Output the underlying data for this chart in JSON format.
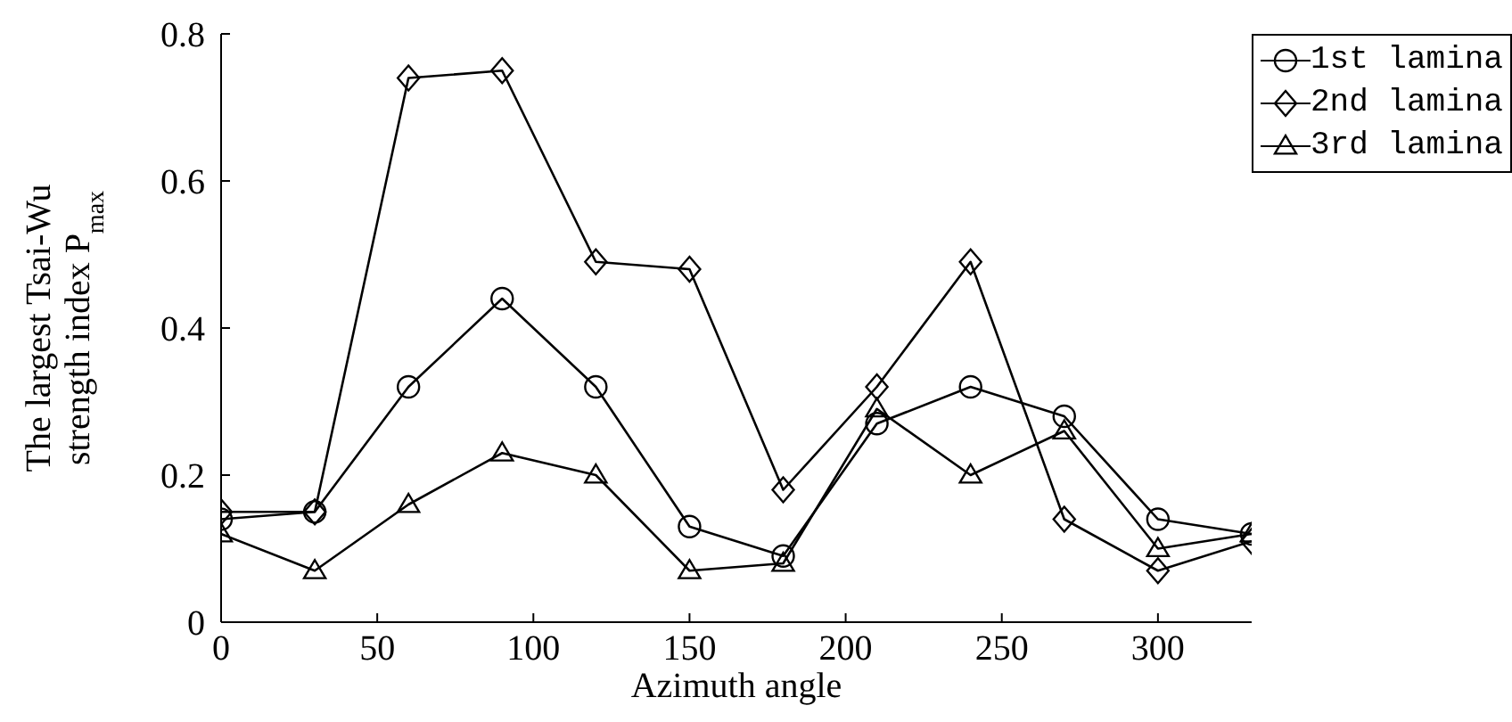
{
  "chart_data": {
    "type": "line",
    "xlabel": "Azimuth angle",
    "ylabel": "The largest Tsai-Wu strength index P$_{max}$",
    "x": [
      0,
      30,
      60,
      90,
      120,
      150,
      180,
      210,
      240,
      270,
      300,
      330
    ],
    "series": [
      {
        "name": "1st lamina",
        "color": "#000000",
        "marker": "circle",
        "values": [
          0.14,
          0.15,
          0.32,
          0.44,
          0.32,
          0.13,
          0.09,
          0.27,
          0.32,
          0.28,
          0.14,
          0.12
        ]
      },
      {
        "name": "2nd lamina",
        "color": "#000000",
        "marker": "diamond",
        "values": [
          0.15,
          0.15,
          0.74,
          0.75,
          0.49,
          0.48,
          0.18,
          0.32,
          0.49,
          0.14,
          0.07,
          0.11
        ]
      },
      {
        "name": "3rd lamina",
        "color": "#000000",
        "marker": "triangle",
        "values": [
          0.12,
          0.07,
          0.16,
          0.23,
          0.2,
          0.07,
          0.08,
          0.29,
          0.2,
          0.26,
          0.1,
          0.12
        ]
      }
    ],
    "xlim": [
      0,
      330
    ],
    "xticks": [
      0,
      50,
      100,
      150,
      200,
      250,
      300
    ],
    "ylim": [
      0,
      0.8
    ],
    "yticks": [
      0,
      0.2,
      0.4,
      0.6,
      0.8
    ],
    "grid": false,
    "legend": "top right",
    "line_style": "solid"
  }
}
